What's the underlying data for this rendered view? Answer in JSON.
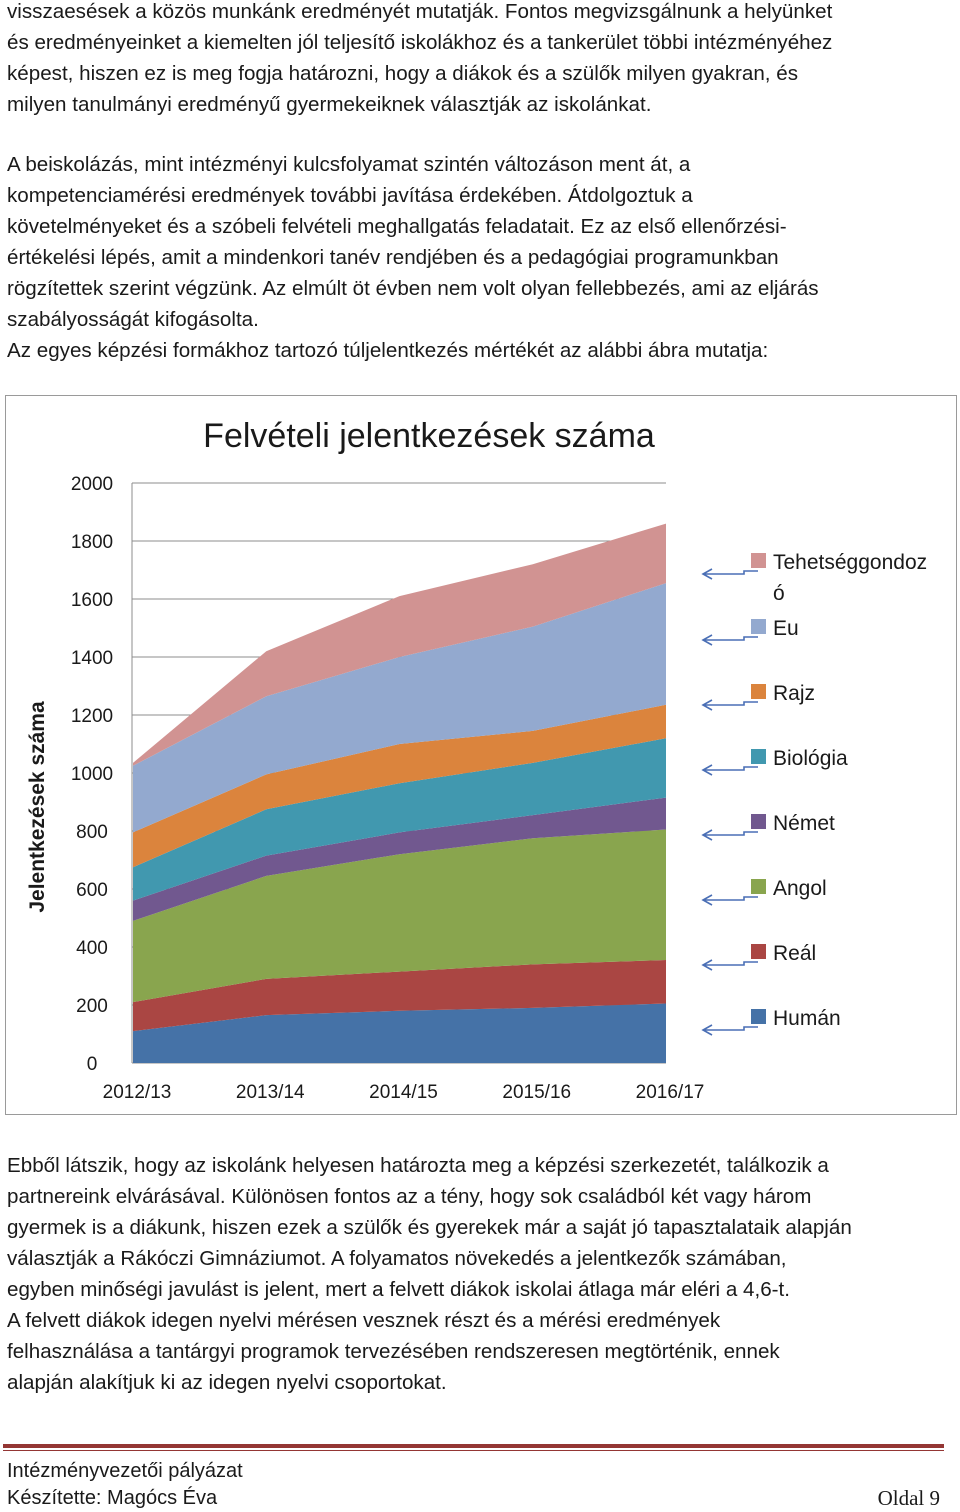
{
  "intro_lines": [
    "visszaesések a közös munkánk eredményét mutatják. Fontos megvizsgálnunk a helyünket",
    "és eredményeinket a kiemelten jól teljesítő iskolákhoz és a tankerület többi intézményéhez",
    "képest, hiszen ez is meg fogja határozni, hogy a diákok és a szülők milyen gyakran, és",
    "milyen tanulmányi eredményű gyermekeiknek választják az iskolánkat."
  ],
  "second_lines": [
    "A beiskolázás, mint intézményi kulcsfolyamat szintén változáson ment át, a",
    "kompetenciamérési eredmények további javítása érdekében. Átdolgoztuk a",
    "követelményeket és a szóbeli felvételi meghallgatás feladatait. Ez az első ellenőrzési-",
    "értékelési lépés, amit a mindenkori tanév rendjében és a pedagógiai programunkban",
    "rögzítettek szerint végzünk. Az elmúlt öt évben nem volt olyan fellebbezés, ami az eljárás",
    "szabályosságát kifogásolta.",
    "Az egyes képzési formákhoz tartozó túljelentkezés mértékét az alábbi ábra mutatja:"
  ],
  "after_lines": [
    "Ebből látszik, hogy az iskolánk helyesen határozta meg a képzési szerkezetét, találkozik a",
    "partnereink elvárásával. Különösen fontos az a tény, hogy sok családból két vagy három",
    "gyermek is a diákunk, hiszen ezek a szülők és gyerekek már a saját jó tapasztalataik alapján",
    "választják a Rákóczi Gimnáziumot. A folyamatos növekedés a jelentkezők számában,",
    "egyben minőségi javulást is jelent, mert a felvett diákok iskolai átlaga már eléri a 4,6-t.",
    "A felvett diákok idegen nyelvi mérésen vesznek részt és a mérési eredmények",
    "felhasználása a tantárgyi programok tervezésében rendszeresen megtörténik, ennek",
    "alapján alakítjuk ki az idegen nyelvi csoportokat."
  ],
  "footer": {
    "line1": "Intézményvezetői pályázat",
    "line2": "Készítette: Magócs Éva",
    "page": "Oldal 9",
    "rule_color": "#943634"
  },
  "chart_data": {
    "type": "area",
    "stacked": true,
    "title": "Felvételi jelentkezések száma",
    "ylabel": "Jelentkezések száma",
    "xlabel": "",
    "categories": [
      "2012/13",
      "2013/14",
      "2014/15",
      "2015/16",
      "2016/17"
    ],
    "ylim": [
      0,
      2000
    ],
    "yticks": [
      0,
      200,
      400,
      600,
      800,
      1000,
      1200,
      1400,
      1600,
      1800,
      2000
    ],
    "grid": true,
    "legend_position": "right",
    "series": [
      {
        "name": "Humán",
        "color": "#4572A7",
        "values": [
          110,
          165,
          180,
          190,
          205
        ]
      },
      {
        "name": "Reál",
        "color": "#AA4643",
        "values": [
          100,
          125,
          135,
          150,
          150
        ]
      },
      {
        "name": "Angol",
        "color": "#89A54E",
        "values": [
          280,
          355,
          405,
          435,
          450
        ]
      },
      {
        "name": "Német",
        "color": "#71588F",
        "values": [
          70,
          70,
          75,
          80,
          110
        ]
      },
      {
        "name": "Biológia",
        "color": "#4198AF",
        "values": [
          115,
          160,
          170,
          180,
          205
        ]
      },
      {
        "name": "Rajz",
        "color": "#DB843D",
        "values": [
          120,
          120,
          135,
          110,
          115
        ]
      },
      {
        "name": "Eu",
        "color": "#93A9CF",
        "values": [
          230,
          270,
          300,
          360,
          420
        ]
      },
      {
        "name": "Tehetséggondozó",
        "legend_lines": [
          "Tehetséggondoz",
          "ó"
        ],
        "color": "#D19392",
        "values": [
          10,
          155,
          210,
          215,
          205
        ]
      }
    ]
  }
}
